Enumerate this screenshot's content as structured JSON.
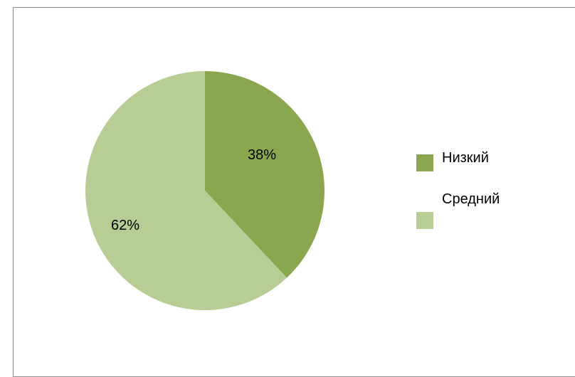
{
  "chart_data": {
    "type": "pie",
    "title": "",
    "categories": [
      "Низкий",
      "Средний"
    ],
    "values": [
      38,
      62
    ],
    "labels": [
      "38%",
      "62%"
    ],
    "colors": [
      "#8aa74f",
      "#b7cd95"
    ],
    "legend_position": "right"
  }
}
